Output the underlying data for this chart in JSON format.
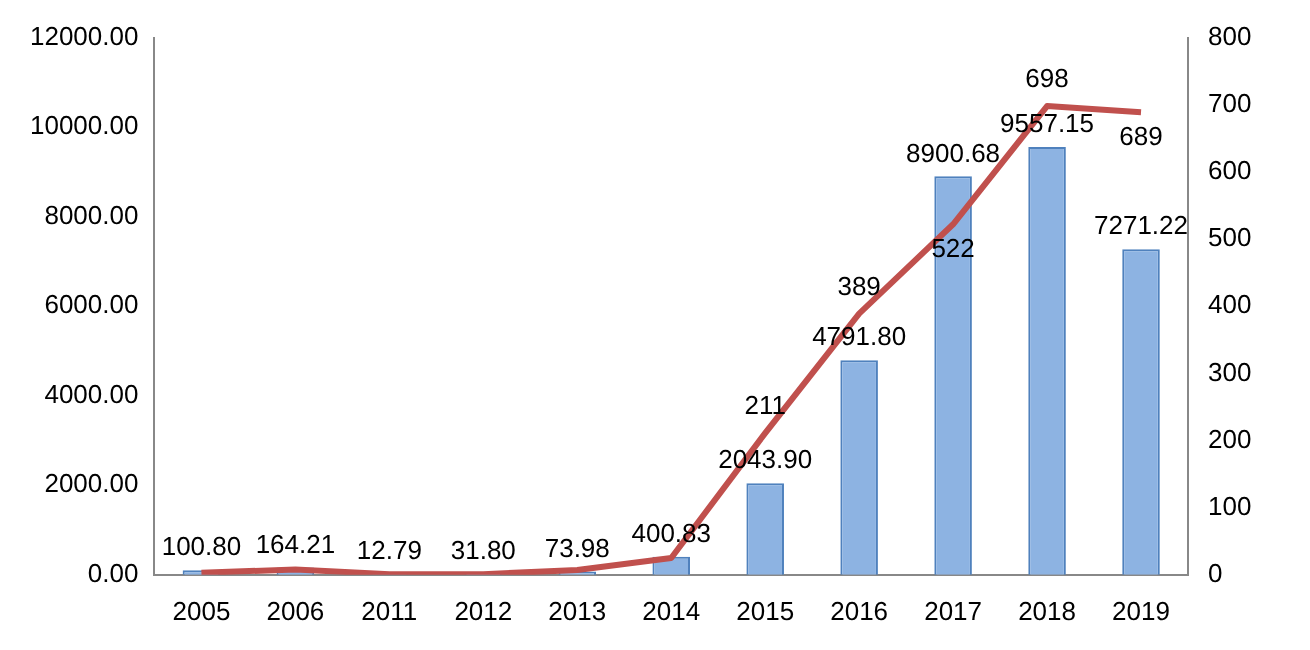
{
  "chart_data": {
    "type": "bar",
    "categories": [
      "2005",
      "2006",
      "2011",
      "2012",
      "2013",
      "2014",
      "2015",
      "2016",
      "2017",
      "2018",
      "2019"
    ],
    "series": [
      {
        "color": "#8db3e2",
        "values": [
          100.8,
          164.21,
          12.79,
          31.8,
          73.98,
          400.83,
          2043.9,
          4791.8,
          8900.68,
          9557.15,
          7271.22
        ],
        "value_labels": [
          "100.80",
          "164.21",
          "12.79",
          "31.80",
          "73.98",
          "400.83",
          "2043.90",
          "4791.80",
          "8900.68",
          "9557.15",
          "7271.22"
        ]
      },
      {
        "type": "line",
        "axis": "y2",
        "color": "#c0504d",
        "values": [
          3,
          8,
          1,
          1,
          7,
          25,
          211,
          389,
          522,
          698,
          689
        ],
        "value_labels": [
          null,
          null,
          null,
          null,
          null,
          null,
          "211",
          "389",
          "522",
          "698",
          "689"
        ]
      }
    ],
    "ylim": [
      0,
      12000
    ],
    "yticks": [
      {
        "value": 0,
        "label": "0.00"
      },
      {
        "value": 2000,
        "label": "2000.00"
      },
      {
        "value": 4000,
        "label": "4000.00"
      },
      {
        "value": 6000,
        "label": "6000.00"
      },
      {
        "value": 8000,
        "label": "8000.00"
      },
      {
        "value": 10000,
        "label": "10000.00"
      },
      {
        "value": 12000,
        "label": "12000.00"
      }
    ],
    "y2lim": [
      0,
      800
    ],
    "y2ticks": [
      0,
      100,
      200,
      300,
      400,
      500,
      600,
      700,
      800
    ],
    "grid": false,
    "legend": false,
    "marker": "none",
    "line_style": "solid"
  }
}
